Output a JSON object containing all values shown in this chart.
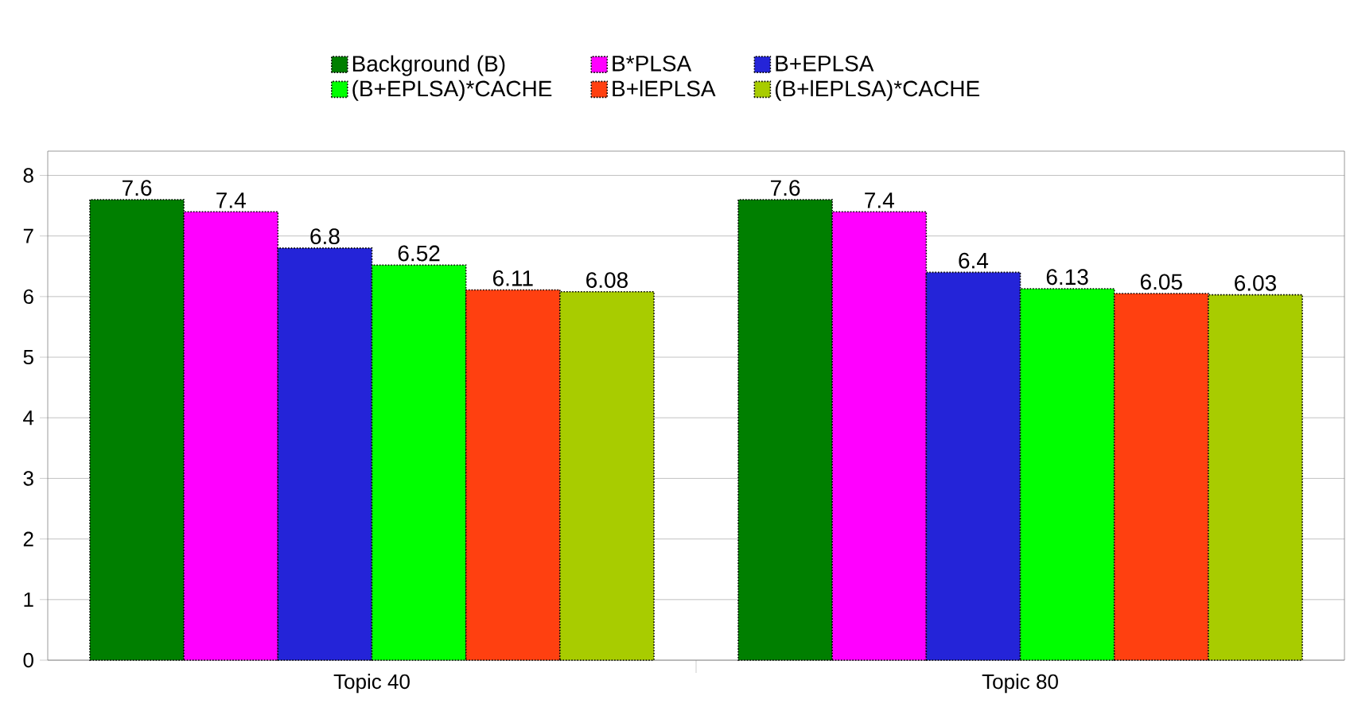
{
  "chart_data": {
    "type": "bar",
    "categories": [
      "Topic 40",
      "Topic 80"
    ],
    "series": [
      {
        "name": "Background (B)",
        "color": "#007f00",
        "values": [
          7.6,
          7.6
        ]
      },
      {
        "name": "B*PLSA",
        "color": "#ff00ff",
        "values": [
          7.4,
          7.4
        ]
      },
      {
        "name": "B+EPLSA",
        "color": "#2424d8",
        "values": [
          6.8,
          6.4
        ]
      },
      {
        "name": "(B+EPLSA)*CACHE",
        "color": "#00ff00",
        "values": [
          6.52,
          6.13
        ]
      },
      {
        "name": "B+lEPLSA",
        "color": "#ff4010",
        "values": [
          6.11,
          6.05
        ]
      },
      {
        "name": "(B+lEPLSA)*CACHE",
        "color": "#a8cc00",
        "values": [
          6.08,
          6.03
        ]
      }
    ],
    "ylim": [
      0,
      8.4
    ],
    "yticks": [
      0,
      1,
      2,
      3,
      4,
      5,
      6,
      7,
      8
    ],
    "grid": "y",
    "legend": "top",
    "data_labels": true
  }
}
